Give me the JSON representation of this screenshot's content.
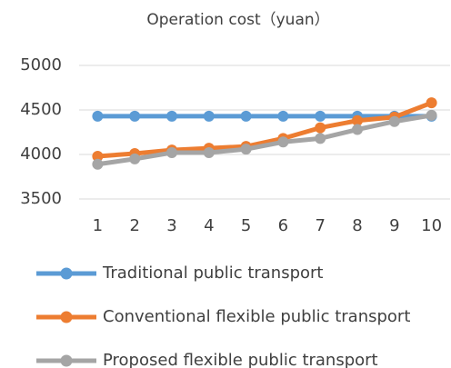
{
  "chart_data": {
    "type": "line",
    "title": "Operation cost（yuan）",
    "categories": [
      "1",
      "2",
      "3",
      "4",
      "5",
      "6",
      "7",
      "8",
      "9",
      "10"
    ],
    "series": [
      {
        "name": "Traditional public transport",
        "color": "#5b9bd5",
        "values": [
          4430,
          4430,
          4430,
          4430,
          4430,
          4430,
          4430,
          4430,
          4430,
          4430
        ]
      },
      {
        "name": "Conventional flexible public transport",
        "color": "#ed7d31",
        "values": [
          3980,
          4010,
          4050,
          4070,
          4090,
          4180,
          4300,
          4380,
          4420,
          4580
        ]
      },
      {
        "name": "Proposed flexible public transport",
        "color": "#a5a5a5",
        "values": [
          3890,
          3950,
          4020,
          4020,
          4060,
          4140,
          4180,
          4280,
          4370,
          4440
        ]
      }
    ],
    "ylim": [
      3500,
      5000
    ],
    "yticks": [
      3500,
      4000,
      4500,
      5000
    ],
    "grid": true,
    "legend": "bottom"
  }
}
